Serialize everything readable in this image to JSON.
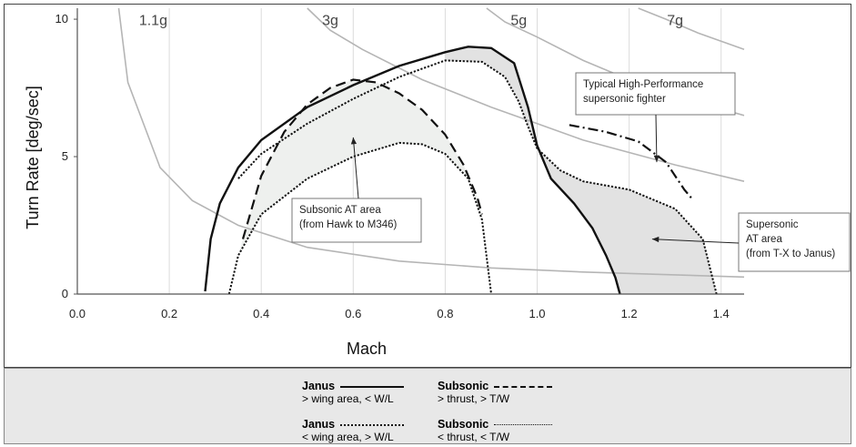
{
  "chart_data": {
    "type": "line",
    "xlabel": "Mach",
    "ylabel": "Turn Rate [deg/sec]",
    "xlim": [
      0.0,
      1.45
    ],
    "ylim": [
      0,
      10.4
    ],
    "x_ticks": [
      "0.0",
      "0.2",
      "0.4",
      "0.6",
      "0.8",
      "1.0",
      "1.2",
      "1.4"
    ],
    "y_ticks": [
      "0",
      "5",
      "10"
    ],
    "grid": "vertical",
    "load_factor_curves": [
      {
        "label": "1.1g",
        "points": [
          [
            0.09,
            10.4
          ],
          [
            0.11,
            7.7
          ],
          [
            0.18,
            4.6
          ],
          [
            0.25,
            3.4
          ],
          [
            0.35,
            2.5
          ],
          [
            0.5,
            1.7
          ],
          [
            0.7,
            1.2
          ],
          [
            0.9,
            0.95
          ],
          [
            1.1,
            0.8
          ],
          [
            1.3,
            0.7
          ],
          [
            1.45,
            0.62
          ]
        ]
      },
      {
        "label": "3g",
        "points": [
          [
            0.5,
            10.4
          ],
          [
            0.55,
            9.6
          ],
          [
            0.62,
            8.9
          ],
          [
            0.75,
            7.8
          ],
          [
            0.9,
            6.8
          ],
          [
            1.0,
            6.2
          ],
          [
            1.1,
            5.6
          ],
          [
            1.2,
            5.15
          ],
          [
            1.3,
            4.7
          ],
          [
            1.45,
            4.1
          ]
        ]
      },
      {
        "label": "5g",
        "points": [
          [
            0.89,
            10.4
          ],
          [
            0.93,
            9.9
          ],
          [
            1.0,
            9.35
          ],
          [
            1.1,
            8.5
          ],
          [
            1.2,
            7.8
          ],
          [
            1.3,
            7.2
          ],
          [
            1.45,
            6.5
          ]
        ]
      },
      {
        "label": "7g",
        "points": [
          [
            1.22,
            10.4
          ],
          [
            1.28,
            10.0
          ],
          [
            1.35,
            9.5
          ],
          [
            1.45,
            8.9
          ]
        ]
      }
    ],
    "series": [
      {
        "name": "Janus",
        "description": "> wing area, < W/L",
        "dash": "solid",
        "points": [
          [
            0.278,
            0.1
          ],
          [
            0.29,
            2.0
          ],
          [
            0.31,
            3.3
          ],
          [
            0.35,
            4.6
          ],
          [
            0.4,
            5.6
          ],
          [
            0.5,
            6.8
          ],
          [
            0.6,
            7.6
          ],
          [
            0.7,
            8.3
          ],
          [
            0.8,
            8.8
          ],
          [
            0.85,
            9.0
          ],
          [
            0.9,
            8.95
          ],
          [
            0.95,
            8.4
          ],
          [
            0.98,
            6.8
          ],
          [
            1.0,
            5.4
          ],
          [
            1.03,
            4.2
          ],
          [
            1.08,
            3.3
          ],
          [
            1.12,
            2.4
          ],
          [
            1.15,
            1.4
          ],
          [
            1.17,
            0.6
          ],
          [
            1.18,
            0.0
          ]
        ]
      },
      {
        "name": "Janus",
        "description": "< wing area, > W/L",
        "dash": "dotted",
        "points": [
          [
            0.35,
            4.2
          ],
          [
            0.4,
            5.1
          ],
          [
            0.5,
            6.2
          ],
          [
            0.6,
            7.1
          ],
          [
            0.7,
            7.9
          ],
          [
            0.8,
            8.5
          ],
          [
            0.88,
            8.45
          ],
          [
            0.93,
            7.9
          ],
          [
            0.96,
            7.0
          ],
          [
            0.98,
            6.1
          ],
          [
            1.0,
            5.3
          ],
          [
            1.05,
            4.5
          ],
          [
            1.1,
            4.1
          ],
          [
            1.2,
            3.8
          ],
          [
            1.3,
            3.1
          ],
          [
            1.36,
            2.0
          ],
          [
            1.39,
            0.0
          ]
        ]
      },
      {
        "name": "Subsonic",
        "description": "> thrust, > T/W",
        "dash": "dashed",
        "points": [
          [
            0.36,
            2.0
          ],
          [
            0.4,
            4.3
          ],
          [
            0.45,
            5.9
          ],
          [
            0.5,
            6.9
          ],
          [
            0.55,
            7.5
          ],
          [
            0.6,
            7.8
          ],
          [
            0.65,
            7.7
          ],
          [
            0.7,
            7.3
          ],
          [
            0.75,
            6.7
          ],
          [
            0.8,
            5.8
          ],
          [
            0.84,
            4.7
          ],
          [
            0.87,
            3.5
          ],
          [
            0.88,
            2.9
          ]
        ]
      },
      {
        "name": "Subsonic",
        "description": "< thrust, < T/W",
        "dash": "dotted",
        "points": [
          [
            0.33,
            0.0
          ],
          [
            0.35,
            1.4
          ],
          [
            0.4,
            2.9
          ],
          [
            0.5,
            4.2
          ],
          [
            0.6,
            5.0
          ],
          [
            0.7,
            5.5
          ],
          [
            0.75,
            5.45
          ],
          [
            0.8,
            5.1
          ],
          [
            0.85,
            4.2
          ],
          [
            0.88,
            2.7
          ],
          [
            0.9,
            0.0
          ]
        ]
      },
      {
        "name": "Typical High-Performance supersonic fighter",
        "description": "",
        "dash": "dashdot",
        "points": [
          [
            1.07,
            6.15
          ],
          [
            1.15,
            5.9
          ],
          [
            1.22,
            5.55
          ],
          [
            1.28,
            4.8
          ],
          [
            1.32,
            3.8
          ],
          [
            1.34,
            3.4
          ]
        ]
      }
    ],
    "annotations": [
      {
        "lines": [
          "Typical High-Performance",
          "supersonic fighter"
        ],
        "arrow_to": [
          1.26,
          4.8
        ]
      },
      {
        "lines": [
          "Subsonic AT area",
          "(from Hawk to M346)"
        ],
        "arrow_to": [
          0.6,
          5.7
        ]
      },
      {
        "lines": [
          "Supersonic",
          "AT area",
          "(from T-X to Janus)"
        ],
        "arrow_to": [
          1.25,
          2.0
        ]
      }
    ]
  },
  "legend": {
    "janus_solid": {
      "title": "Janus",
      "desc": "> wing area, < W/L"
    },
    "janus_dotted": {
      "title": "Janus",
      "desc": "< wing area, > W/L"
    },
    "subsonic_dashed": {
      "title": "Subsonic",
      "desc": "> thrust, > T/W"
    },
    "subsonic_dotted": {
      "title": "Subsonic",
      "desc": "< thrust, < T/W"
    }
  }
}
